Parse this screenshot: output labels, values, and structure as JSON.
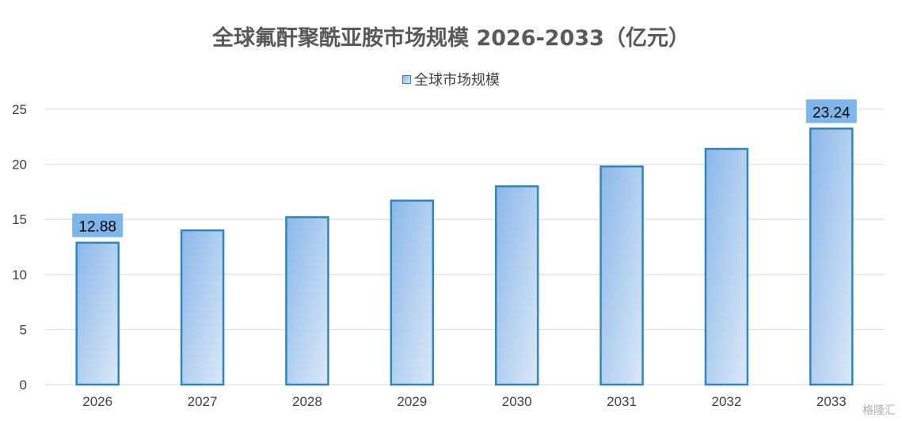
{
  "chart_data": {
    "type": "bar",
    "title": "全球氟酐聚酰亚胺市场规模 2026-2033（亿元）",
    "xlabel": "",
    "ylabel": "",
    "categories": [
      "2026",
      "2027",
      "2028",
      "2029",
      "2030",
      "2031",
      "2032",
      "2033"
    ],
    "series": [
      {
        "name": "全球市场规模",
        "values": [
          12.88,
          14.0,
          15.2,
          16.7,
          18.0,
          19.8,
          21.4,
          23.24
        ]
      }
    ],
    "data_labels": {
      "2026": "12.88",
      "2033": "23.24"
    },
    "ylim": [
      0,
      25
    ],
    "yticks": [
      0,
      5,
      10,
      15,
      20,
      25
    ],
    "grid": true,
    "legend_position": "top",
    "colors": {
      "bar_gradient_start": "#8ab8ea",
      "bar_gradient_end": "#dce8f7",
      "bar_border": "#2e86c1",
      "label_background": "#7db6ea",
      "gridline": "#d9d9d9"
    }
  },
  "watermark": "格隆汇"
}
